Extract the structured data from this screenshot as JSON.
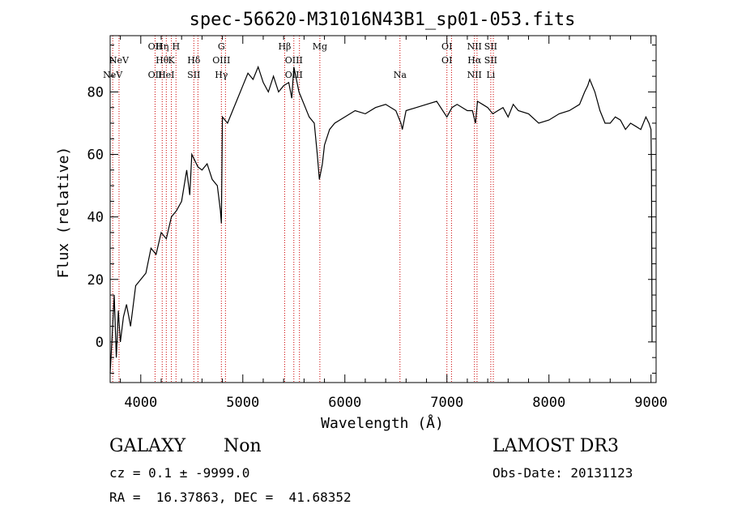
{
  "chart_data": {
    "type": "line",
    "title": "spec-56620-M31016N43B1_sp01-053.fits",
    "xlabel": "Wavelength (Å)",
    "ylabel": "Flux (relative)",
    "xlim": [
      3700,
      9050
    ],
    "ylim": [
      -13,
      98
    ],
    "xticks": [
      4000,
      5000,
      6000,
      7000,
      8000,
      9000
    ],
    "yticks": [
      0,
      20,
      40,
      60,
      80
    ],
    "series": [
      {
        "name": "spectrum",
        "x": [
          3700,
          3720,
          3740,
          3760,
          3780,
          3800,
          3830,
          3860,
          3900,
          3950,
          4000,
          4050,
          4100,
          4150,
          4200,
          4250,
          4300,
          4350,
          4400,
          4450,
          4480,
          4500,
          4530,
          4560,
          4600,
          4650,
          4700,
          4750,
          4780,
          4790,
          4800,
          4850,
          4900,
          4950,
          5000,
          5050,
          5100,
          5150,
          5200,
          5250,
          5300,
          5350,
          5400,
          5450,
          5480,
          5500,
          5550,
          5600,
          5650,
          5700,
          5730,
          5750,
          5780,
          5800,
          5850,
          5900,
          6000,
          6100,
          6200,
          6300,
          6400,
          6500,
          6550,
          6563,
          6600,
          6700,
          6800,
          6900,
          7000,
          7050,
          7100,
          7200,
          7250,
          7280,
          7300,
          7350,
          7400,
          7450,
          7500,
          7550,
          7600,
          7650,
          7700,
          7800,
          7900,
          8000,
          8100,
          8200,
          8300,
          8350,
          8380,
          8400,
          8450,
          8500,
          8550,
          8600,
          8650,
          8700,
          8750,
          8800,
          8850,
          8900,
          8950,
          8980,
          9000,
          9005,
          9010
        ],
        "y": [
          -10,
          2,
          15,
          -5,
          10,
          0,
          8,
          12,
          5,
          18,
          20,
          22,
          30,
          28,
          35,
          33,
          40,
          42,
          45,
          55,
          47,
          60,
          58,
          56,
          55,
          57,
          52,
          50,
          42,
          38,
          72,
          70,
          74,
          78,
          82,
          86,
          84,
          88,
          83,
          80,
          85,
          80,
          82,
          83,
          78,
          88,
          80,
          76,
          72,
          70,
          60,
          52,
          57,
          63,
          68,
          70,
          72,
          74,
          73,
          75,
          76,
          74,
          70,
          68,
          74,
          75,
          76,
          77,
          72,
          75,
          76,
          74,
          74,
          70,
          77,
          76,
          75,
          73,
          74,
          75,
          72,
          76,
          74,
          73,
          70,
          71,
          73,
          74,
          76,
          80,
          82,
          84,
          80,
          74,
          70,
          70,
          72,
          71,
          68,
          70,
          69,
          68,
          72,
          70,
          68,
          55,
          0
        ]
      }
    ],
    "lines": [
      {
        "x": 3725,
        "labels": [
          "NeV"
        ],
        "level": 2
      },
      {
        "x": 3787,
        "labels": [
          "NeV"
        ],
        "level": 1
      },
      {
        "x": 4140,
        "labels": [
          "OII",
          "OII"
        ],
        "level": 0,
        "level2": 2
      },
      {
        "x": 4210,
        "labels": [
          "Hη",
          "Hθ"
        ],
        "level": 0,
        "level2": 1
      },
      {
        "x": 4250,
        "labels": [
          "HeI"
        ],
        "level": 2
      },
      {
        "x": 4300,
        "labels": [
          "K"
        ],
        "level": 1
      },
      {
        "x": 4345,
        "labels": [
          "H"
        ],
        "level": 0
      },
      {
        "x": 4520,
        "labels": [
          "Hδ",
          "SII"
        ],
        "level": 1,
        "level2": 2
      },
      {
        "x": 4560,
        "labels": [],
        "level": 0
      },
      {
        "x": 4790,
        "labels": [
          "G",
          "OIII",
          "Hγ"
        ],
        "level": 0,
        "level2": 1,
        "level3": 2
      },
      {
        "x": 4830,
        "labels": [],
        "level": 0
      },
      {
        "x": 5410,
        "labels": [
          "Hβ"
        ],
        "level": 0
      },
      {
        "x": 5500,
        "labels": [
          "OIII",
          "OIII"
        ],
        "level": 1,
        "level2": 2
      },
      {
        "x": 5555,
        "labels": [],
        "level": 0
      },
      {
        "x": 5755,
        "labels": [
          "Mg"
        ],
        "level": 0
      },
      {
        "x": 6540,
        "labels": [
          "Na"
        ],
        "level": 2
      },
      {
        "x": 7000,
        "labels": [
          "OI",
          "OI"
        ],
        "level": 0,
        "level2": 1
      },
      {
        "x": 7045,
        "labels": [],
        "level": 0
      },
      {
        "x": 7270,
        "labels": [
          "NII",
          "Hα",
          "NII"
        ],
        "level": 0,
        "level2": 1,
        "level3": 2
      },
      {
        "x": 7295,
        "labels": [],
        "level": 0
      },
      {
        "x": 7430,
        "labels": [
          "SII",
          "SII",
          "Li"
        ],
        "level": 0,
        "level2": 1,
        "level3": 2
      },
      {
        "x": 7455,
        "labels": [],
        "level": 0
      }
    ]
  },
  "info": {
    "object_class": "GALAXY",
    "subclass": "Non",
    "cz": "cz = 0.1 ± -9999.0",
    "radec": "RA =  16.37863, DEC =  41.68352",
    "survey": "LAMOST DR3",
    "obs_date": "Obs-Date: 20131123"
  },
  "colors": {
    "line_marker": "#cc0000",
    "spectrum": "#000000",
    "axis": "#000000"
  }
}
